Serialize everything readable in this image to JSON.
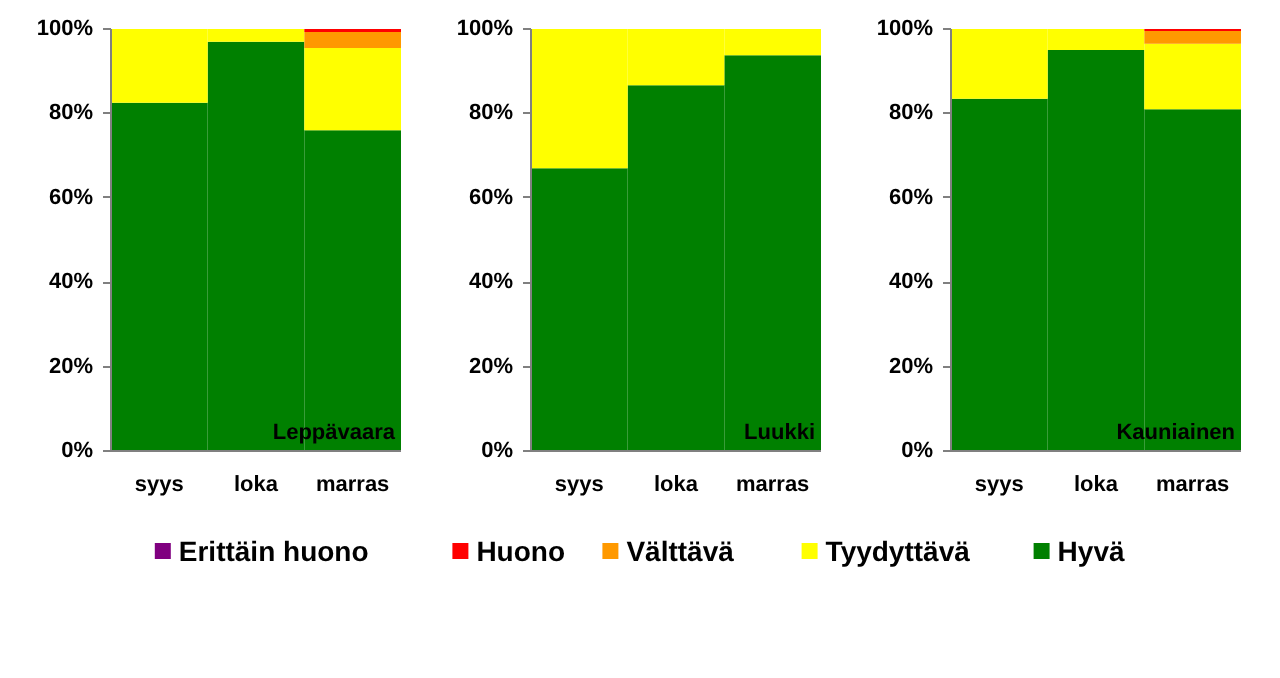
{
  "chart_data": [
    {
      "type": "bar",
      "stacked": true,
      "categories": [
        "syys",
        "loka",
        "marras"
      ],
      "annotations": [
        "Leppävaara"
      ],
      "ylim": [
        0,
        100
      ],
      "yticks": [
        {
          "value": 0,
          "label": "0%"
        },
        {
          "value": 20,
          "label": "20%"
        },
        {
          "value": 40,
          "label": "40%"
        },
        {
          "value": 60,
          "label": "60%"
        },
        {
          "value": 80,
          "label": "80%"
        },
        {
          "value": 100,
          "label": "100%"
        }
      ],
      "grid": false,
      "legend": "bottom",
      "series": [
        {
          "name": "Hyvä",
          "color": "#008000",
          "values": [
            82.5,
            97,
            76
          ]
        },
        {
          "name": "Tyydyttävä",
          "color": "#ffff00",
          "values": [
            17.5,
            3,
            19.5
          ]
        },
        {
          "name": "Välttävä",
          "color": "#ff9900",
          "values": [
            0,
            0,
            3.8
          ]
        },
        {
          "name": "Huono",
          "color": "#ff0000",
          "values": [
            0,
            0,
            0.7
          ]
        },
        {
          "name": "Erittäin huono",
          "color": "#800080",
          "values": [
            0,
            0,
            0
          ]
        }
      ]
    },
    {
      "type": "bar",
      "stacked": true,
      "categories": [
        "syys",
        "loka",
        "marras"
      ],
      "annotations": [
        "Luukki"
      ],
      "ylim": [
        0,
        100
      ],
      "yticks": [
        {
          "value": 0,
          "label": "0%"
        },
        {
          "value": 20,
          "label": "20%"
        },
        {
          "value": 40,
          "label": "40%"
        },
        {
          "value": 60,
          "label": "60%"
        },
        {
          "value": 80,
          "label": "80%"
        },
        {
          "value": 100,
          "label": "100%"
        }
      ],
      "grid": false,
      "series": [
        {
          "color": "#008000",
          "values": [
            67,
            86.7,
            93.8
          ]
        },
        {
          "color": "#ffff00",
          "values": [
            33,
            13.3,
            6.2
          ]
        },
        {
          "color": "#ff9900",
          "values": [
            0,
            0,
            0
          ]
        },
        {
          "color": "#ff0000",
          "values": [
            0,
            0,
            0
          ]
        },
        {
          "color": "#800080",
          "values": [
            0,
            0,
            0
          ]
        }
      ]
    },
    {
      "type": "bar",
      "stacked": true,
      "categories": [
        "syys",
        "loka",
        "marras"
      ],
      "annotations": [
        "Kauniainen"
      ],
      "ylim": [
        0,
        100
      ],
      "yticks": [
        {
          "value": 0,
          "label": "0%"
        },
        {
          "value": 20,
          "label": "20%"
        },
        {
          "value": 40,
          "label": "40%"
        },
        {
          "value": 60,
          "label": "60%"
        },
        {
          "value": 80,
          "label": "80%"
        },
        {
          "value": 100,
          "label": "100%"
        }
      ],
      "grid": false,
      "series": [
        {
          "color": "#008000",
          "values": [
            83.5,
            95,
            81
          ]
        },
        {
          "color": "#ffff00",
          "values": [
            16.5,
            5,
            15.5
          ]
        },
        {
          "color": "#ff9900",
          "values": [
            0,
            0,
            3
          ]
        },
        {
          "color": "#ff0000",
          "values": [
            0,
            0,
            0.5
          ]
        },
        {
          "color": "#800080",
          "values": [
            0,
            0,
            0
          ]
        }
      ]
    }
  ]
}
